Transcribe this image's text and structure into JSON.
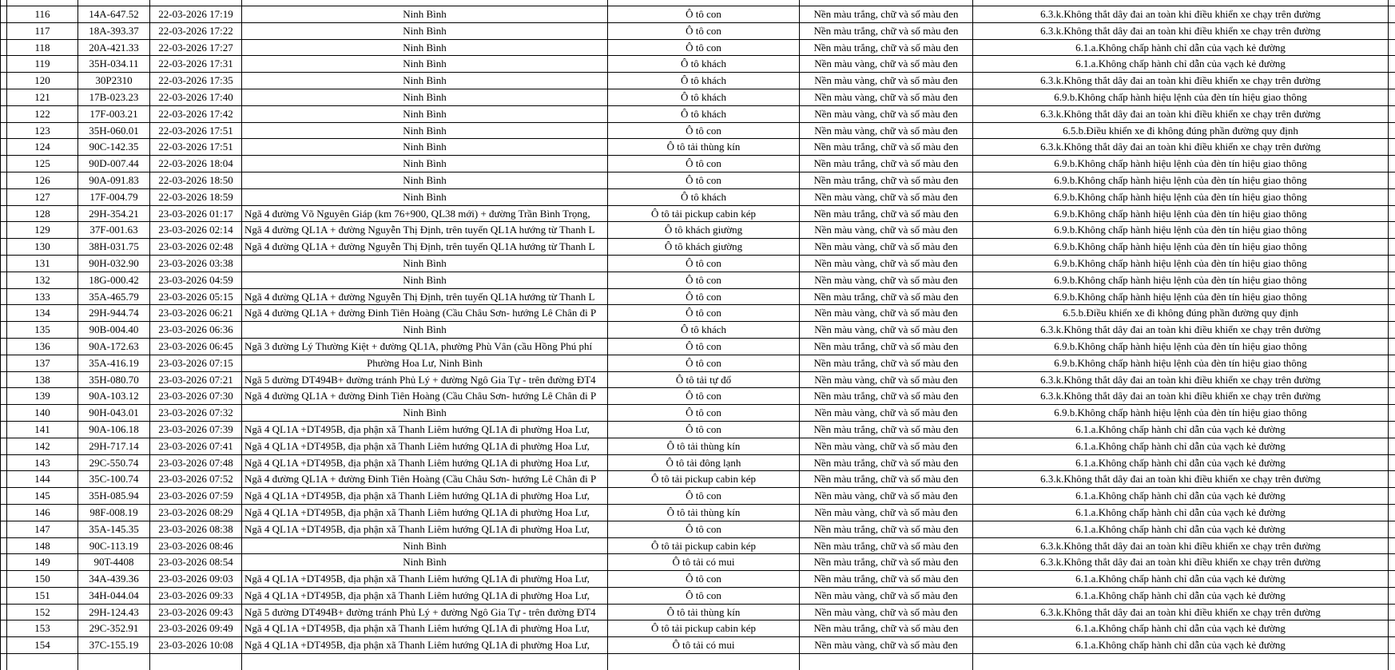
{
  "table": {
    "rows": [
      {
        "stt": "116",
        "plate": "14A-647.52",
        "datetime": "22-03-2026 17:19",
        "location": "Ninh Bình",
        "vehicle": "Ô tô con",
        "plate_style": "Nền màu trắng, chữ và số màu đen",
        "violation": "6.3.k.Không thắt dây đai an toàn khi điều khiển xe chạy trên đường"
      },
      {
        "stt": "117",
        "plate": "18A-393.37",
        "datetime": "22-03-2026 17:22",
        "location": "Ninh Bình",
        "vehicle": "Ô tô con",
        "plate_style": "Nền màu trắng, chữ và số màu đen",
        "violation": "6.3.k.Không thắt dây đai an toàn khi điều khiển xe chạy trên đường"
      },
      {
        "stt": "118",
        "plate": "20A-421.33",
        "datetime": "22-03-2026 17:27",
        "location": "Ninh Bình",
        "vehicle": "Ô tô con",
        "plate_style": "Nền màu trắng, chữ và số màu đen",
        "violation": "6.1.a.Không chấp hành chỉ dẫn của vạch kẻ đường"
      },
      {
        "stt": "119",
        "plate": "35H-034.11",
        "datetime": "22-03-2026 17:31",
        "location": "Ninh Bình",
        "vehicle": "Ô tô khách",
        "plate_style": "Nền màu vàng, chữ và số màu đen",
        "violation": "6.1.a.Không chấp hành chỉ dẫn của vạch kẻ đường"
      },
      {
        "stt": "120",
        "plate": "30P2310",
        "datetime": "22-03-2026 17:35",
        "location": "Ninh Bình",
        "vehicle": "Ô tô khách",
        "plate_style": "Nền màu vàng, chữ và số màu đen",
        "violation": "6.3.k.Không thắt dây đai an toàn khi điều khiển xe chạy trên đường"
      },
      {
        "stt": "121",
        "plate": "17B-023.23",
        "datetime": "22-03-2026 17:40",
        "location": "Ninh Bình",
        "vehicle": "Ô tô khách",
        "plate_style": "Nền màu vàng, chữ và số màu đen",
        "violation": "6.9.b.Không chấp hành hiệu lệnh của đèn tín hiệu giao thông"
      },
      {
        "stt": "122",
        "plate": "17F-003.21",
        "datetime": "22-03-2026 17:42",
        "location": "Ninh Bình",
        "vehicle": "Ô tô khách",
        "plate_style": "Nền màu vàng, chữ và số màu đen",
        "violation": "6.3.k.Không thắt dây đai an toàn khi điều khiển xe chạy trên đường"
      },
      {
        "stt": "123",
        "plate": "35H-060.01",
        "datetime": "22-03-2026 17:51",
        "location": "Ninh Bình",
        "vehicle": "Ô tô con",
        "plate_style": "Nền màu vàng, chữ và số màu đen",
        "violation": "6.5.b.Điều khiển xe đi không đúng phần đường quy định"
      },
      {
        "stt": "124",
        "plate": "90C-142.35",
        "datetime": "22-03-2026 17:51",
        "location": "Ninh Bình",
        "vehicle": "Ô tô tải thùng kín",
        "plate_style": "Nền màu trắng, chữ và số màu đen",
        "violation": "6.3.k.Không thắt dây đai an toàn khi điều khiển xe chạy trên đường"
      },
      {
        "stt": "125",
        "plate": "90D-007.44",
        "datetime": "22-03-2026 18:04",
        "location": "Ninh Bình",
        "vehicle": "Ô tô con",
        "plate_style": "Nền màu trắng, chữ và số màu đen",
        "violation": "6.9.b.Không chấp hành hiệu lệnh của đèn tín hiệu giao thông"
      },
      {
        "stt": "126",
        "plate": "90A-091.83",
        "datetime": "22-03-2026 18:50",
        "location": "Ninh Bình",
        "vehicle": "Ô tô con",
        "plate_style": "Nền màu trắng, chữ và số màu đen",
        "violation": "6.9.b.Không chấp hành hiệu lệnh của đèn tín hiệu giao thông"
      },
      {
        "stt": "127",
        "plate": "17F-004.79",
        "datetime": "22-03-2026 18:59",
        "location": "Ninh Bình",
        "vehicle": "Ô tô khách",
        "plate_style": "Nền màu vàng, chữ và số màu đen",
        "violation": "6.9.b.Không chấp hành hiệu lệnh của đèn tín hiệu giao thông"
      },
      {
        "stt": "128",
        "plate": "29H-354.21",
        "datetime": "23-03-2026 01:17",
        "location": "Ngã 4 đường Võ Nguyên Giáp (km 76+900, QL38 mới) + đường Trần Bình Trọng,",
        "vehicle": "Ô tô tải pickup cabin kép",
        "plate_style": "Nền màu trắng, chữ và số màu đen",
        "violation": "6.9.b.Không chấp hành hiệu lệnh của đèn tín hiệu giao thông"
      },
      {
        "stt": "129",
        "plate": "37F-001.63",
        "datetime": "23-03-2026 02:14",
        "location": "Ngã 4 đường QL1A + đường Nguyễn Thị Định, trên tuyến QL1A hướng từ Thanh L",
        "vehicle": "Ô tô khách giường",
        "plate_style": "Nền màu vàng, chữ và số màu đen",
        "violation": "6.9.b.Không chấp hành hiệu lệnh của đèn tín hiệu giao thông"
      },
      {
        "stt": "130",
        "plate": "38H-031.75",
        "datetime": "23-03-2026 02:48",
        "location": "Ngã 4 đường QL1A + đường Nguyễn Thị Định, trên tuyến QL1A hướng từ Thanh L",
        "vehicle": "Ô tô khách giường",
        "plate_style": "Nền màu vàng, chữ và số màu đen",
        "violation": "6.9.b.Không chấp hành hiệu lệnh của đèn tín hiệu giao thông"
      },
      {
        "stt": "131",
        "plate": "90H-032.90",
        "datetime": "23-03-2026 03:38",
        "location": "Ninh Bình",
        "vehicle": "Ô tô con",
        "plate_style": "Nền màu vàng, chữ và số màu đen",
        "violation": "6.9.b.Không chấp hành hiệu lệnh của đèn tín hiệu giao thông"
      },
      {
        "stt": "132",
        "plate": "18G-000.42",
        "datetime": "23-03-2026 04:59",
        "location": "Ninh Bình",
        "vehicle": "Ô tô con",
        "plate_style": "Nền màu vàng, chữ và số màu đen",
        "violation": "6.9.b.Không chấp hành hiệu lệnh của đèn tín hiệu giao thông"
      },
      {
        "stt": "133",
        "plate": "35A-465.79",
        "datetime": "23-03-2026 05:15",
        "location": "Ngã 4 đường QL1A + đường Nguyễn Thị Định, trên tuyến QL1A hướng từ Thanh L",
        "vehicle": "Ô tô con",
        "plate_style": "Nền màu trắng, chữ và số màu đen",
        "violation": "6.9.b.Không chấp hành hiệu lệnh của đèn tín hiệu giao thông"
      },
      {
        "stt": "134",
        "plate": "29H-944.74",
        "datetime": "23-03-2026 06:21",
        "location": "Ngã 4 đường QL1A + đường Đinh Tiên Hoàng (Cầu Châu Sơn- hướng Lê Chân đi P",
        "vehicle": "Ô tô con",
        "plate_style": "Nền màu vàng, chữ và số màu đen",
        "violation": "6.5.b.Điều khiển xe đi không đúng phần đường quy định"
      },
      {
        "stt": "135",
        "plate": "90B-004.40",
        "datetime": "23-03-2026 06:36",
        "location": "Ninh Bình",
        "vehicle": "Ô tô khách",
        "plate_style": "Nền màu vàng, chữ và số màu đen",
        "violation": "6.3.k.Không thắt dây đai an toàn khi điều khiển xe chạy trên đường"
      },
      {
        "stt": "136",
        "plate": "90A-172.63",
        "datetime": "23-03-2026 06:45",
        "location": "Ngã 3 đường Lý Thường Kiệt + đường QL1A, phường Phù Vân (cầu Hồng Phú phí",
        "vehicle": "Ô tô con",
        "plate_style": "Nền màu trắng, chữ và số màu đen",
        "violation": "6.9.b.Không chấp hành hiệu lệnh của đèn tín hiệu giao thông"
      },
      {
        "stt": "137",
        "plate": "35A-416.19",
        "datetime": "23-03-2026 07:15",
        "location": "Phường Hoa Lư, Ninh Bình",
        "vehicle": "Ô tô con",
        "plate_style": "Nền màu trắng, chữ và số màu đen",
        "violation": "6.9.b.Không chấp hành hiệu lệnh của đèn tín hiệu giao thông"
      },
      {
        "stt": "138",
        "plate": "35H-080.70",
        "datetime": "23-03-2026 07:21",
        "location": "Ngã 5 đường DT494B+ đường tránh Phủ Lý + đường Ngô Gia Tự - trên đường ĐT4",
        "vehicle": "Ô tô tải tự đổ",
        "plate_style": "Nền màu vàng, chữ và số màu đen",
        "violation": "6.3.k.Không thắt dây đai an toàn khi điều khiển xe chạy trên đường"
      },
      {
        "stt": "139",
        "plate": "90A-103.12",
        "datetime": "23-03-2026 07:30",
        "location": "Ngã 4 đường QL1A + đường Đinh Tiên Hoàng (Cầu Châu Sơn- hướng Lê Chân đi P",
        "vehicle": "Ô tô con",
        "plate_style": "Nền màu trắng, chữ và số màu đen",
        "violation": "6.3.k.Không thắt dây đai an toàn khi điều khiển xe chạy trên đường"
      },
      {
        "stt": "140",
        "plate": "90H-043.01",
        "datetime": "23-03-2026 07:32",
        "location": "Ninh Bình",
        "vehicle": "Ô tô con",
        "plate_style": "Nền màu vàng, chữ và số màu đen",
        "violation": "6.9.b.Không chấp hành hiệu lệnh của đèn tín hiệu giao thông"
      },
      {
        "stt": "141",
        "plate": "90A-106.18",
        "datetime": "23-03-2026 07:39",
        "location": "Ngã 4 QL1A +DT495B, địa phận xã Thanh Liêm hướng QL1A đi phường Hoa Lư,",
        "vehicle": "Ô tô con",
        "plate_style": "Nền màu trắng, chữ và số màu đen",
        "violation": "6.1.a.Không chấp hành chỉ dẫn của vạch kẻ đường"
      },
      {
        "stt": "142",
        "plate": "29H-717.14",
        "datetime": "23-03-2026 07:41",
        "location": "Ngã 4 QL1A +DT495B, địa phận xã Thanh Liêm hướng QL1A đi phường Hoa Lư,",
        "vehicle": "Ô tô tải thùng kín",
        "plate_style": "Nền màu vàng, chữ và số màu đen",
        "violation": "6.1.a.Không chấp hành chỉ dẫn của vạch kẻ đường"
      },
      {
        "stt": "143",
        "plate": "29C-550.74",
        "datetime": "23-03-2026 07:48",
        "location": "Ngã 4 QL1A +DT495B, địa phận xã Thanh Liêm hướng QL1A đi phường Hoa Lư,",
        "vehicle": "Ô tô tải đông lạnh",
        "plate_style": "Nền màu trắng, chữ và số màu đen",
        "violation": "6.1.a.Không chấp hành chỉ dẫn của vạch kẻ đường"
      },
      {
        "stt": "144",
        "plate": "35C-100.74",
        "datetime": "23-03-2026 07:52",
        "location": "Ngã 4 đường QL1A + đường Đinh Tiên Hoàng (Cầu Châu Sơn- hướng Lê Chân đi P",
        "vehicle": "Ô tô tải pickup cabin kép",
        "plate_style": "Nền màu trắng, chữ và số màu đen",
        "violation": "6.3.k.Không thắt dây đai an toàn khi điều khiển xe chạy trên đường"
      },
      {
        "stt": "145",
        "plate": "35H-085.94",
        "datetime": "23-03-2026 07:59",
        "location": "Ngã 4 QL1A +DT495B, địa phận xã Thanh Liêm hướng QL1A đi phường Hoa Lư,",
        "vehicle": "Ô tô con",
        "plate_style": "Nền màu vàng, chữ và số màu đen",
        "violation": "6.1.a.Không chấp hành chỉ dẫn của vạch kẻ đường"
      },
      {
        "stt": "146",
        "plate": "98F-008.19",
        "datetime": "23-03-2026 08:29",
        "location": "Ngã 4 QL1A +DT495B, địa phận xã Thanh Liêm hướng QL1A đi phường Hoa Lư,",
        "vehicle": "Ô tô tải thùng kín",
        "plate_style": "Nền màu vàng, chữ và số màu đen",
        "violation": "6.1.a.Không chấp hành chỉ dẫn của vạch kẻ đường"
      },
      {
        "stt": "147",
        "plate": "35A-145.35",
        "datetime": "23-03-2026 08:38",
        "location": "Ngã 4 QL1A +DT495B, địa phận xã Thanh Liêm hướng QL1A đi phường Hoa Lư,",
        "vehicle": "Ô tô con",
        "plate_style": "Nền màu trắng, chữ và số màu đen",
        "violation": "6.1.a.Không chấp hành chỉ dẫn của vạch kẻ đường"
      },
      {
        "stt": "148",
        "plate": "90C-113.19",
        "datetime": "23-03-2026 08:46",
        "location": "Ninh Bình",
        "vehicle": "Ô tô tải pickup cabin kép",
        "plate_style": "Nền màu trắng, chữ và số màu đen",
        "violation": "6.3.k.Không thắt dây đai an toàn khi điều khiển xe chạy trên đường"
      },
      {
        "stt": "149",
        "plate": "90T-4408",
        "datetime": "23-03-2026 08:54",
        "location": "Ninh Bình",
        "vehicle": "Ô tô tải có mui",
        "plate_style": "Nền màu trắng, chữ và số màu đen",
        "violation": "6.3.k.Không thắt dây đai an toàn khi điều khiển xe chạy trên đường"
      },
      {
        "stt": "150",
        "plate": "34A-439.36",
        "datetime": "23-03-2026 09:03",
        "location": "Ngã 4 QL1A +DT495B, địa phận xã Thanh Liêm hướng QL1A đi phường Hoa Lư,",
        "vehicle": "Ô tô con",
        "plate_style": "Nền màu trắng, chữ và số màu đen",
        "violation": "6.1.a.Không chấp hành chỉ dẫn của vạch kẻ đường"
      },
      {
        "stt": "151",
        "plate": "34H-044.04",
        "datetime": "23-03-2026 09:33",
        "location": "Ngã 4 QL1A +DT495B, địa phận xã Thanh Liêm hướng QL1A đi phường Hoa Lư,",
        "vehicle": "Ô tô con",
        "plate_style": "Nền màu vàng, chữ và số màu đen",
        "violation": "6.1.a.Không chấp hành chỉ dẫn của vạch kẻ đường"
      },
      {
        "stt": "152",
        "plate": "29H-124.43",
        "datetime": "23-03-2026 09:43",
        "location": "Ngã 5 đường DT494B+ đường tránh Phủ Lý + đường Ngô Gia Tự - trên đường ĐT4",
        "vehicle": "Ô tô tải thùng kín",
        "plate_style": "Nền màu vàng, chữ và số màu đen",
        "violation": "6.3.k.Không thắt dây đai an toàn khi điều khiển xe chạy trên đường"
      },
      {
        "stt": "153",
        "plate": "29C-352.91",
        "datetime": "23-03-2026 09:49",
        "location": "Ngã 4 QL1A +DT495B, địa phận xã Thanh Liêm hướng QL1A đi phường Hoa Lư,",
        "vehicle": "Ô tô tải pickup cabin kép",
        "plate_style": "Nền màu trắng, chữ và số màu đen",
        "violation": "6.1.a.Không chấp hành chỉ dẫn của vạch kẻ đường"
      },
      {
        "stt": "154",
        "plate": "37C-155.19",
        "datetime": "23-03-2026 10:08",
        "location": "Ngã 4 QL1A +DT495B, địa phận xã Thanh Liêm hướng QL1A đi phường Hoa Lư,",
        "vehicle": "Ô tô tải có mui",
        "plate_style": "Nền màu vàng, chữ và số màu đen",
        "violation": "6.1.a.Không chấp hành chỉ dẫn của vạch kẻ đường"
      }
    ],
    "centered_locations": [
      "Ninh Bình",
      "Phường Hoa Lư, Ninh Bình"
    ]
  },
  "colors": {
    "background": "#ffffff",
    "border": "#000000",
    "text": "#000000"
  }
}
